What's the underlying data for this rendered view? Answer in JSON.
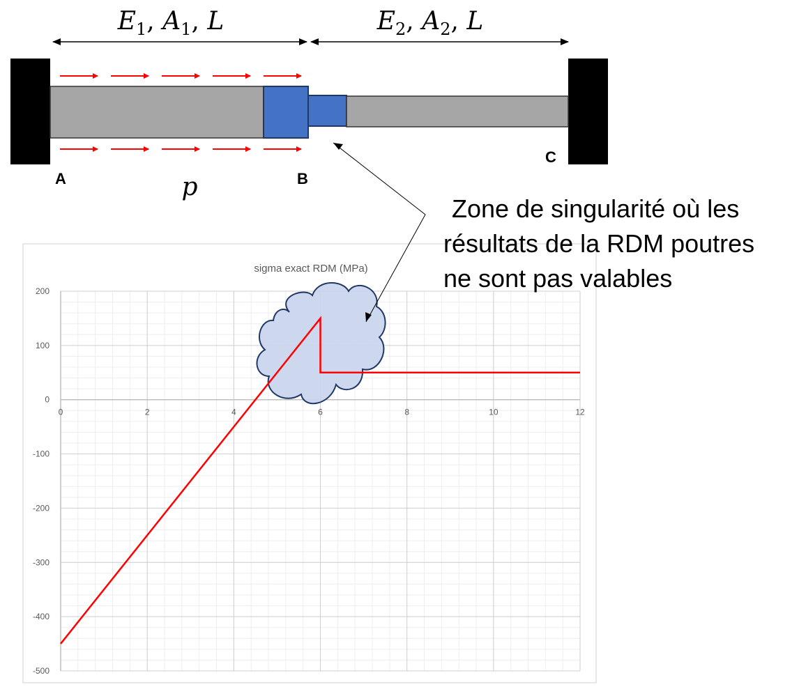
{
  "beam": {
    "segment1_label": "E",
    "segment1_props": [
      {
        "base": "E",
        "sub": "1"
      },
      {
        "base": "A",
        "sub": "1"
      },
      {
        "base": "L",
        "sub": ""
      }
    ],
    "segment2_props": [
      {
        "base": "E",
        "sub": "2"
      },
      {
        "base": "A",
        "sub": "2"
      },
      {
        "base": "L",
        "sub": ""
      }
    ],
    "point_a": "A",
    "point_b": "B",
    "point_c": "C",
    "load_label": "p",
    "colors": {
      "wall": "#000000",
      "bar": "#a6a6a6",
      "node": "#4472c4",
      "load_arrow": "#ff0000"
    }
  },
  "note": {
    "lines": [
      "Zone de singularité où les",
      "résultats de la RDM poutres",
      "ne sont pas valables"
    ]
  },
  "cloud": {
    "fill": "#c9d5ee",
    "stroke": "#1f3864"
  },
  "chart_data": {
    "type": "line",
    "title": "sigma exact  RDM (MPa)",
    "xlabel": "",
    "ylabel": "",
    "xlim": [
      0,
      12
    ],
    "ylim": [
      -500,
      200
    ],
    "x_ticks": [
      "0",
      "2",
      "4",
      "6",
      "8",
      "10",
      "12"
    ],
    "y_ticks": [
      "200",
      "100",
      "0",
      "-100",
      "-200",
      "-300",
      "-400",
      "-500"
    ],
    "grid": true,
    "series": [
      {
        "color": "#ff0000",
        "points": [
          {
            "x": 0,
            "y": -450
          },
          {
            "x": 6,
            "y": 150
          },
          {
            "x": 6,
            "y": 50
          },
          {
            "x": 12,
            "y": 50
          }
        ]
      }
    ]
  }
}
